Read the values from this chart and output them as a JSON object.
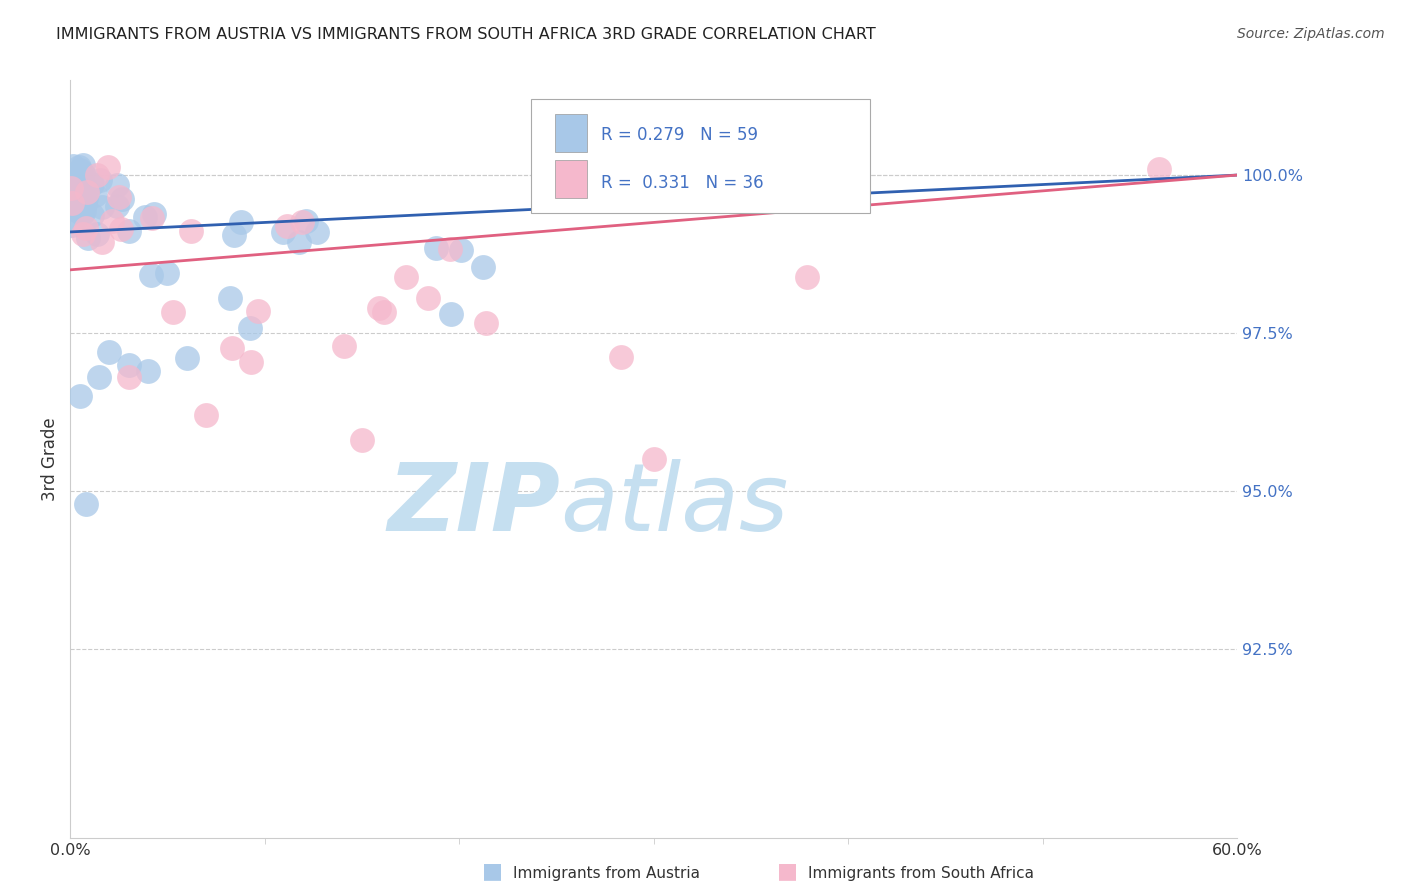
{
  "title": "IMMIGRANTS FROM AUSTRIA VS IMMIGRANTS FROM SOUTH AFRICA 3RD GRADE CORRELATION CHART",
  "source": "Source: ZipAtlas.com",
  "ylabel": "3rd Grade",
  "xlim": [
    0.0,
    60.0
  ],
  "ylim": [
    89.5,
    101.5
  ],
  "austria_R": 0.279,
  "austria_N": 59,
  "southafrica_R": 0.331,
  "southafrica_N": 36,
  "austria_color": "#a8c8e8",
  "southafrica_color": "#f5b8cc",
  "austria_line_color": "#3060b0",
  "southafrica_line_color": "#e06080",
  "background_color": "#ffffff",
  "watermark_zip": "ZIP",
  "watermark_atlas": "atlas",
  "watermark_color_zip": "#c8dff0",
  "watermark_color_atlas": "#c8dff0",
  "grid_color": "#cccccc",
  "ytick_vals": [
    92.5,
    95.0,
    97.5,
    100.0
  ],
  "ytick_color": "#4472c4"
}
